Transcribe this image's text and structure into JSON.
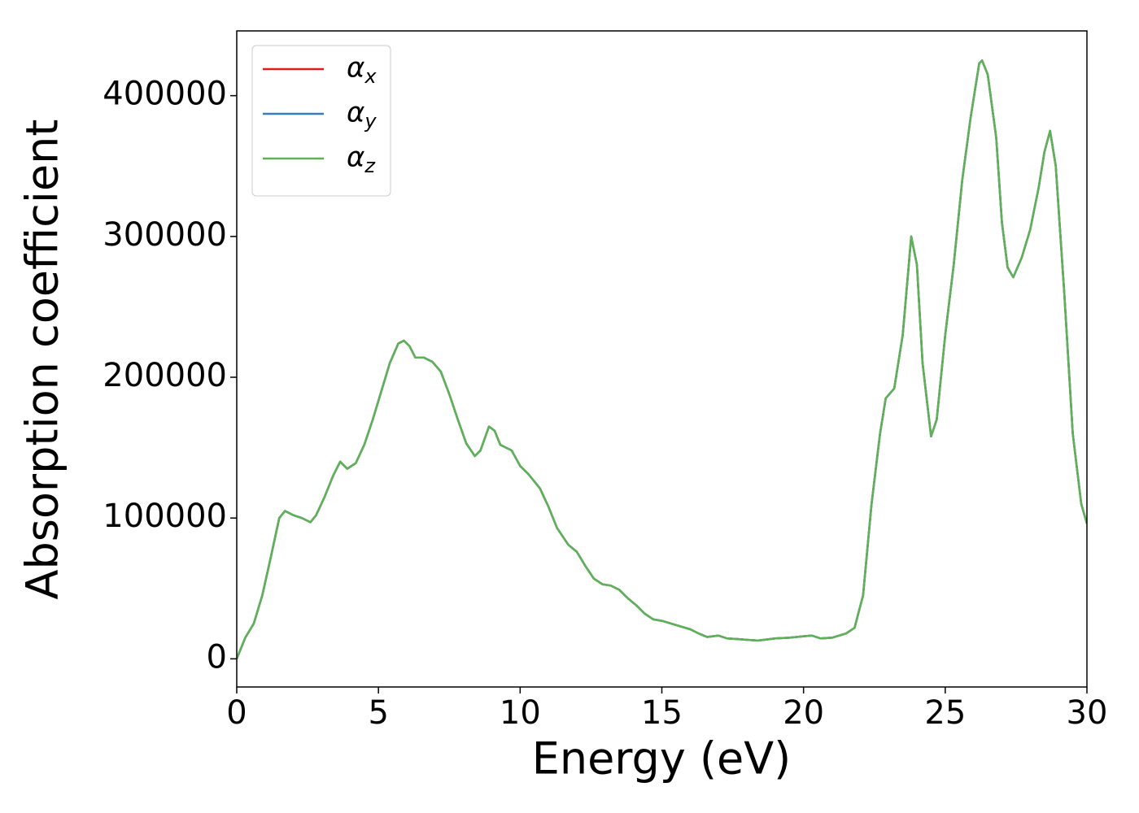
{
  "chart_data": {
    "type": "line",
    "xlabel": "Energy (eV)",
    "ylabel": "Absorption coefficient",
    "xlim": [
      0,
      30
    ],
    "xticks": [
      0,
      5,
      10,
      15,
      20,
      25,
      30
    ],
    "ylim": [
      -20000,
      446000
    ],
    "yticks": [
      0,
      100000,
      200000,
      300000,
      400000
    ],
    "grid": false,
    "legend": "upper left",
    "x": [
      0,
      0.3,
      0.6,
      0.9,
      1.2,
      1.5,
      1.7,
      2.0,
      2.3,
      2.6,
      2.8,
      3.1,
      3.4,
      3.65,
      3.9,
      4.2,
      4.5,
      4.8,
      5.1,
      5.4,
      5.7,
      5.9,
      6.1,
      6.3,
      6.6,
      6.9,
      7.2,
      7.5,
      7.8,
      8.1,
      8.4,
      8.6,
      8.9,
      9.1,
      9.3,
      9.7,
      10.0,
      10.3,
      10.7,
      11.0,
      11.3,
      11.7,
      12.0,
      12.3,
      12.6,
      12.9,
      13.2,
      13.5,
      13.8,
      14.1,
      14.4,
      14.7,
      15.0,
      15.5,
      16.0,
      16.3,
      16.6,
      17.0,
      17.3,
      17.7,
      18.0,
      18.4,
      19.0,
      19.5,
      20.0,
      20.3,
      20.6,
      21.0,
      21.5,
      21.8,
      22.1,
      22.4,
      22.7,
      22.9,
      23.2,
      23.5,
      23.8,
      24.0,
      24.2,
      24.5,
      24.7,
      25.0,
      25.3,
      25.6,
      25.9,
      26.2,
      26.3,
      26.5,
      26.8,
      27.0,
      27.2,
      27.4,
      27.7,
      28.0,
      28.3,
      28.5,
      28.7,
      28.9,
      29.2,
      29.5,
      29.8,
      30.0
    ],
    "series": [
      {
        "name": "αx",
        "color": "#e41a1c",
        "values": [
          0,
          15000,
          25000,
          45000,
          72000,
          100000,
          105000,
          102000,
          100000,
          97000,
          102000,
          115000,
          130000,
          140000,
          135000,
          139000,
          152000,
          170000,
          190000,
          210000,
          224000,
          226000,
          222000,
          214000,
          214000,
          211000,
          204000,
          188000,
          170000,
          153000,
          144000,
          148000,
          165000,
          162000,
          152000,
          148000,
          137000,
          131000,
          121000,
          108000,
          93000,
          81000,
          76000,
          66000,
          57000,
          53000,
          52000,
          49000,
          43000,
          38000,
          32000,
          28000,
          27000,
          24000,
          21000,
          18000,
          15500,
          16500,
          14500,
          14000,
          13500,
          13000,
          14500,
          15000,
          16000,
          16500,
          14500,
          15000,
          18000,
          22000,
          45000,
          110000,
          160000,
          185000,
          192000,
          230000,
          300000,
          280000,
          210000,
          158000,
          170000,
          230000,
          280000,
          340000,
          385000,
          423000,
          425000,
          415000,
          370000,
          310000,
          278000,
          271000,
          285000,
          305000,
          335000,
          360000,
          375000,
          350000,
          260000,
          160000,
          110000,
          96000
        ]
      },
      {
        "name": "αy",
        "color": "#377eb8",
        "values": [
          0,
          15000,
          25000,
          45000,
          72000,
          100000,
          105000,
          102000,
          100000,
          97000,
          102000,
          115000,
          130000,
          140000,
          135000,
          139000,
          152000,
          170000,
          190000,
          210000,
          224000,
          226000,
          222000,
          214000,
          214000,
          211000,
          204000,
          188000,
          170000,
          153000,
          144000,
          148000,
          165000,
          162000,
          152000,
          148000,
          137000,
          131000,
          121000,
          108000,
          93000,
          81000,
          76000,
          66000,
          57000,
          53000,
          52000,
          49000,
          43000,
          38000,
          32000,
          28000,
          27000,
          24000,
          21000,
          18000,
          15500,
          16500,
          14500,
          14000,
          13500,
          13000,
          14500,
          15000,
          16000,
          16500,
          14500,
          15000,
          18000,
          22000,
          45000,
          110000,
          160000,
          185000,
          192000,
          230000,
          300000,
          280000,
          210000,
          158000,
          170000,
          230000,
          280000,
          340000,
          385000,
          423000,
          425000,
          415000,
          370000,
          310000,
          278000,
          271000,
          285000,
          305000,
          335000,
          360000,
          375000,
          350000,
          260000,
          160000,
          110000,
          96000
        ]
      },
      {
        "name": "αz",
        "color": "#5cb356",
        "values": [
          0,
          15000,
          25000,
          45000,
          72000,
          100000,
          105000,
          102000,
          100000,
          97000,
          102000,
          115000,
          130000,
          140000,
          135000,
          139000,
          152000,
          170000,
          190000,
          210000,
          224000,
          226000,
          222000,
          214000,
          214000,
          211000,
          204000,
          188000,
          170000,
          153000,
          144000,
          148000,
          165000,
          162000,
          152000,
          148000,
          137000,
          131000,
          121000,
          108000,
          93000,
          81000,
          76000,
          66000,
          57000,
          53000,
          52000,
          49000,
          43000,
          38000,
          32000,
          28000,
          27000,
          24000,
          21000,
          18000,
          15500,
          16500,
          14500,
          14000,
          13500,
          13000,
          14500,
          15000,
          16000,
          16500,
          14500,
          15000,
          18000,
          22000,
          45000,
          110000,
          160000,
          185000,
          192000,
          230000,
          300000,
          280000,
          210000,
          158000,
          170000,
          230000,
          280000,
          340000,
          385000,
          423000,
          425000,
          415000,
          370000,
          310000,
          278000,
          271000,
          285000,
          305000,
          335000,
          360000,
          375000,
          350000,
          260000,
          160000,
          110000,
          96000
        ]
      }
    ]
  }
}
